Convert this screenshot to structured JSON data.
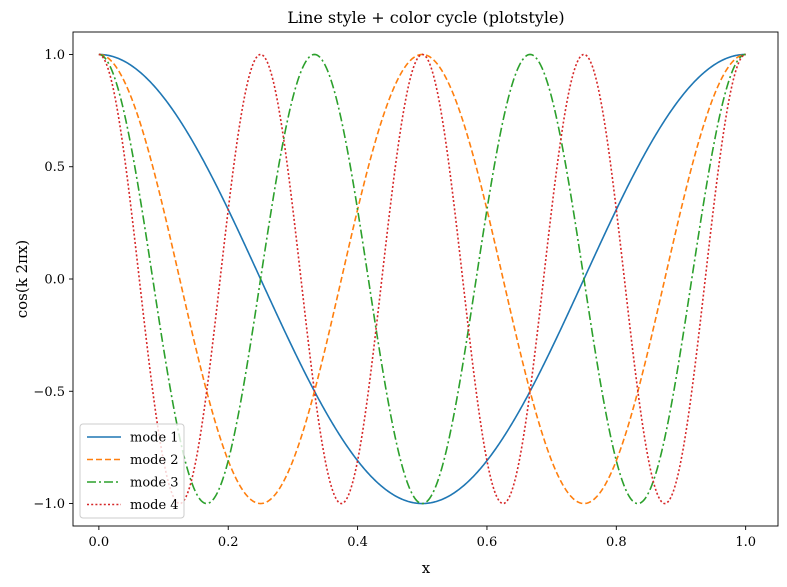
{
  "chart_data": {
    "type": "line",
    "title": "Line style + color cycle (plotstyle)",
    "xlabel": "x",
    "ylabel": "cos(k 2πx)",
    "xlim": [
      -0.04,
      1.05
    ],
    "ylim": [
      -1.1,
      1.1
    ],
    "xticks": [
      0.0,
      0.2,
      0.4,
      0.6,
      0.8,
      1.0
    ],
    "xtick_labels": [
      "0.0",
      "0.2",
      "0.4",
      "0.6",
      "0.8",
      "1.0"
    ],
    "yticks": [
      1.0,
      0.5,
      0.0,
      -0.5,
      -1.0
    ],
    "ytick_labels": [
      "1.0",
      "0.5",
      "0.0",
      "−0.5",
      "−1.0"
    ],
    "grid": false,
    "legend_position": "lower-left",
    "function": "cos(k * 2 * pi * x), x from 0 to 1",
    "series": [
      {
        "name": "mode 1",
        "k": 1,
        "color": "#1f77b4",
        "linestyle": "solid"
      },
      {
        "name": "mode 2",
        "k": 2,
        "color": "#ff7f0e",
        "linestyle": "dashed"
      },
      {
        "name": "mode 3",
        "k": 3,
        "color": "#2ca02c",
        "linestyle": "dashdot"
      },
      {
        "name": "mode 4",
        "k": 4,
        "color": "#d62728",
        "linestyle": "dotted"
      }
    ]
  }
}
